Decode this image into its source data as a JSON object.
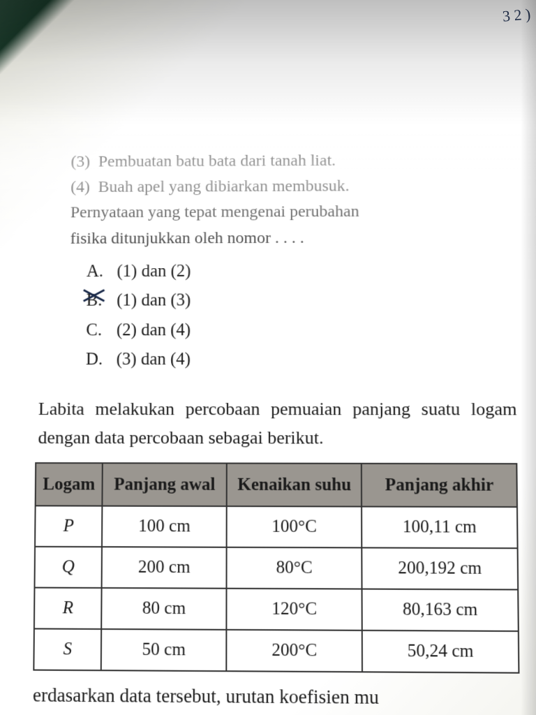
{
  "margin": {
    "scribbles": "3\n2\n)"
  },
  "question1": {
    "statements": [
      {
        "num": "(3)",
        "text": "Pembuatan batu bata dari tanah liat."
      },
      {
        "num": "(4)",
        "text": "Buah apel yang dibiarkan membusuk."
      }
    ],
    "prompt_line1": "Pernyataan yang tepat mengenai perubahan",
    "prompt_line2": "fisika ditunjukkan oleh nomor . . . .",
    "options": [
      {
        "letter": "A.",
        "text": "(1) dan (2)",
        "crossed": false
      },
      {
        "letter": "B.",
        "text": "(1) dan (3)",
        "crossed": true
      },
      {
        "letter": "C.",
        "text": "(2) dan (4)",
        "crossed": false
      },
      {
        "letter": "D.",
        "text": "(3) dan (4)",
        "crossed": false
      }
    ]
  },
  "question2": {
    "intro": "Labita melakukan percobaan pemuaian panjang suatu logam dengan data percobaan sebagai berikut.",
    "table": {
      "headers": [
        "Logam",
        "Panjang awal",
        "Kenaikan suhu",
        "Panjang akhir"
      ],
      "col_widths": [
        "14%",
        "26%",
        "28%",
        "32%"
      ],
      "header_bg": "#9a9690",
      "border_color": "#333333",
      "cell_bg": "#ffffff",
      "rows": [
        {
          "logam": "P",
          "awal": "100 cm",
          "suhu": "100°C",
          "akhir": "100,11 cm"
        },
        {
          "logam": "Q",
          "awal": "200 cm",
          "suhu": "80°C",
          "akhir": "200,192 cm"
        },
        {
          "logam": "R",
          "awal": "80 cm",
          "suhu": "120°C",
          "akhir": "80,163 cm"
        },
        {
          "logam": "S",
          "awal": "50 cm",
          "suhu": "200°C",
          "akhir": "50,24 cm"
        }
      ]
    },
    "footer_line1": "erdasarkan data tersebut, urutan koefisien mu",
    "footer_line2_fragment": ""
  },
  "style": {
    "page_bg": "#ffffff",
    "text_color": "#1a1a1a",
    "font_family": "Georgia, Times New Roman, serif",
    "body_fontsize_pt": 18,
    "header_fontsize_pt": 18
  }
}
